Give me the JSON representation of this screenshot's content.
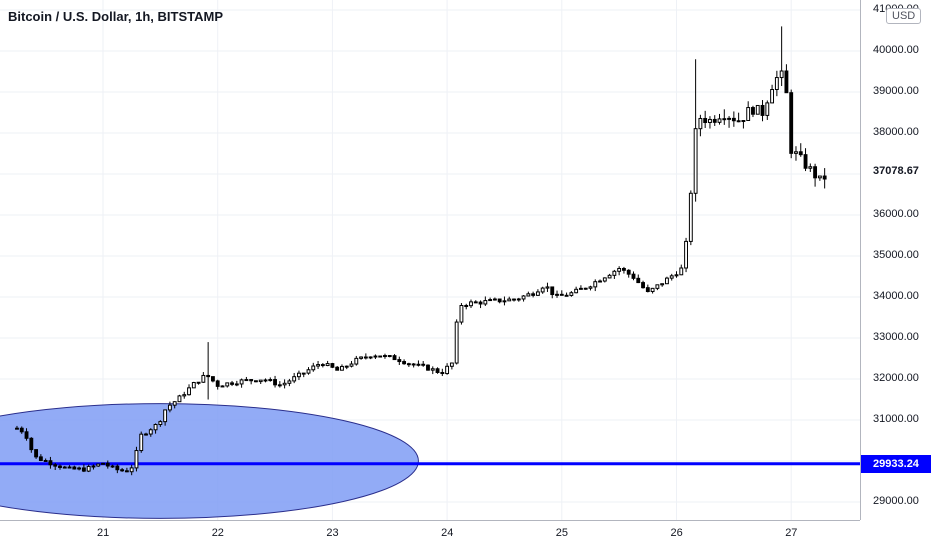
{
  "header": {
    "title": "Bitcoin / U.S. Dollar, 1h, BITSTAMP"
  },
  "price_axis": {
    "currency": "USD",
    "ticks": [
      "29000.00",
      "30000.00",
      "31000.00",
      "32000.00",
      "33000.00",
      "34000.00",
      "35000.00",
      "36000.00",
      "37000.00",
      "38000.00",
      "39000.00",
      "40000.00",
      "41000.00"
    ],
    "last_price_label": "37078.67",
    "horizontal_line_label": "29933.24"
  },
  "time_axis": {
    "ticks": [
      "21",
      "22",
      "23",
      "24",
      "25",
      "26",
      "27"
    ]
  },
  "colors": {
    "candle": "#000000",
    "grid": "#eef1f6",
    "line": "#0000ff",
    "ellipse_fill": "#7f9cf5",
    "ellipse_stroke": "#2a2e8c",
    "background": "#ffffff"
  },
  "chart_data": {
    "type": "candlestick",
    "title": "Bitcoin / U.S. Dollar, 1h, BITSTAMP",
    "ylabel": "USD",
    "ylim": [
      28750,
      41200
    ],
    "xlim_days": [
      20.25,
      27.5
    ],
    "x_ticks": [
      21,
      22,
      23,
      24,
      25,
      26,
      27
    ],
    "grid": true,
    "horizontal_line": 29933.24,
    "last_price": 37078.67,
    "ellipse": {
      "center": [
        21.5,
        30000
      ],
      "radius_days": 2.25,
      "radius_price": 1400
    },
    "anchors": [
      [
        20.25,
        30800
      ],
      [
        20.32,
        30700
      ],
      [
        20.4,
        30100
      ],
      [
        20.55,
        29950
      ],
      [
        20.7,
        29800
      ],
      [
        20.85,
        29800
      ],
      [
        21.0,
        29950
      ],
      [
        21.1,
        29800
      ],
      [
        21.2,
        29750
      ],
      [
        21.27,
        29900
      ],
      [
        21.32,
        30600
      ],
      [
        21.42,
        30800
      ],
      [
        21.48,
        30900
      ],
      [
        21.55,
        31300
      ],
      [
        21.65,
        31500
      ],
      [
        21.8,
        31900
      ],
      [
        21.9,
        32100
      ],
      [
        22.0,
        31850
      ],
      [
        22.2,
        31950
      ],
      [
        22.4,
        32000
      ],
      [
        22.55,
        31850
      ],
      [
        22.75,
        32150
      ],
      [
        22.9,
        32400
      ],
      [
        23.05,
        32200
      ],
      [
        23.2,
        32450
      ],
      [
        23.35,
        32600
      ],
      [
        23.55,
        32500
      ],
      [
        23.7,
        32350
      ],
      [
        23.85,
        32250
      ],
      [
        23.95,
        32150
      ],
      [
        24.05,
        32400
      ],
      [
        24.1,
        33800
      ],
      [
        24.2,
        33850
      ],
      [
        24.4,
        33900
      ],
      [
        24.6,
        33950
      ],
      [
        24.75,
        34100
      ],
      [
        24.85,
        34300
      ],
      [
        24.95,
        34000
      ],
      [
        25.1,
        34100
      ],
      [
        25.25,
        34300
      ],
      [
        25.4,
        34550
      ],
      [
        25.5,
        34700
      ],
      [
        25.62,
        34500
      ],
      [
        25.75,
        34100
      ],
      [
        25.85,
        34300
      ],
      [
        25.95,
        34500
      ],
      [
        26.05,
        34700
      ],
      [
        26.1,
        35600
      ],
      [
        26.14,
        37200
      ],
      [
        26.18,
        38400
      ],
      [
        26.3,
        38300
      ],
      [
        26.4,
        38500
      ],
      [
        26.55,
        38300
      ],
      [
        26.65,
        38600
      ],
      [
        26.75,
        38500
      ],
      [
        26.85,
        39300
      ],
      [
        26.92,
        39400
      ],
      [
        26.97,
        38800
      ],
      [
        27.0,
        37600
      ],
      [
        27.1,
        37300
      ],
      [
        27.2,
        37000
      ],
      [
        27.26,
        36800
      ],
      [
        27.33,
        37078.67
      ]
    ],
    "spikes": [
      {
        "x": 21.93,
        "high": 32900,
        "low": 31500
      },
      {
        "x": 26.17,
        "high": 39800
      },
      {
        "x": 26.93,
        "high": 40600
      }
    ]
  }
}
